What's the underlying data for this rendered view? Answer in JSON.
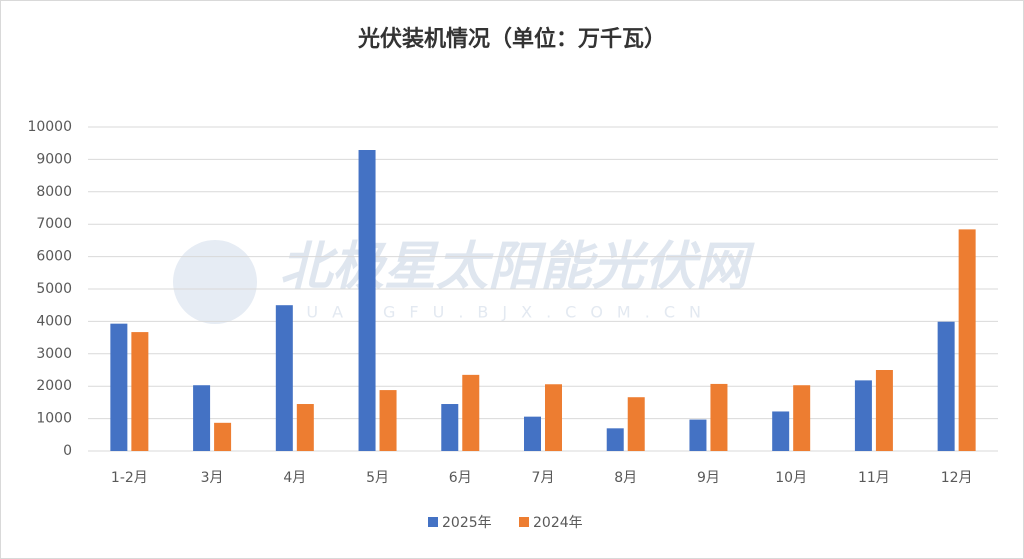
{
  "chart_data": {
    "type": "bar",
    "title": "光伏装机情况（单位：万千瓦）",
    "watermark": "北极星太阳能光伏网",
    "watermark_sub": "GUANGFU.BJX.COM.CN",
    "categories": [
      "1-2月",
      "3月",
      "4月",
      "5月",
      "6月",
      "7月",
      "8月",
      "9月",
      "10月",
      "11月",
      "12月"
    ],
    "series": [
      {
        "name": "2025年",
        "color": "#4472c4",
        "values": [
          3930,
          2030,
          4500,
          9290,
          1450,
          1060,
          700,
          970,
          1220,
          2180,
          3990
        ]
      },
      {
        "name": "2024年",
        "color": "#ed7d31",
        "values": [
          3670,
          870,
          1450,
          1880,
          2350,
          2060,
          1660,
          2070,
          2030,
          2500,
          6840
        ]
      }
    ],
    "ylim": [
      0,
      10000
    ],
    "yticks": [
      0,
      1000,
      2000,
      3000,
      4000,
      5000,
      6000,
      7000,
      8000,
      9000,
      10000
    ],
    "grid": true,
    "legend": "bottom"
  }
}
